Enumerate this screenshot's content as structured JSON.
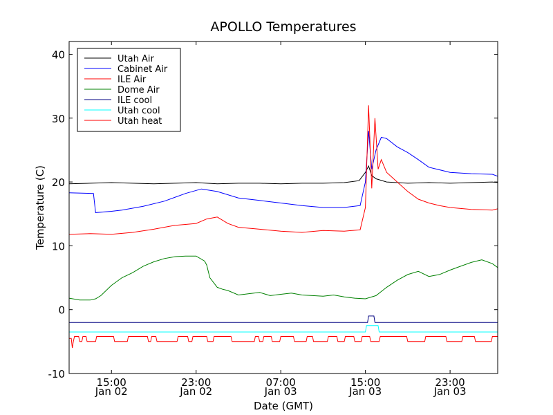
{
  "chart_data": {
    "type": "line",
    "title": "APOLLO Temperatures",
    "xlabel": "Date (GMT)",
    "ylabel": "Temperature (C)",
    "ylim": [
      -10,
      42
    ],
    "xlim": [
      0,
      40.5
    ],
    "x_unit": "hours since 11:00 Jan 02 GMT",
    "yticks": [
      {
        "value": -10,
        "label": "-10"
      },
      {
        "value": 0,
        "label": "0"
      },
      {
        "value": 10,
        "label": "10"
      },
      {
        "value": 20,
        "label": "20"
      },
      {
        "value": 30,
        "label": "30"
      },
      {
        "value": 40,
        "label": "40"
      }
    ],
    "xticks": [
      {
        "value": 4,
        "time": "15:00",
        "date": "Jan 02"
      },
      {
        "value": 12,
        "time": "23:00",
        "date": "Jan 02"
      },
      {
        "value": 20,
        "time": "07:00",
        "date": "Jan 03"
      },
      {
        "value": 28,
        "time": "15:00",
        "date": "Jan 03"
      },
      {
        "value": 36,
        "time": "23:00",
        "date": "Jan 03"
      }
    ],
    "legend_position": "top-left",
    "series": [
      {
        "name": "Utah Air",
        "color": "#000000",
        "x": [
          0,
          2,
          4,
          6,
          8,
          10,
          12,
          14,
          16,
          18,
          20,
          22,
          24,
          26,
          27.4,
          28,
          28.3,
          28.6,
          29,
          30,
          32,
          34,
          36,
          38,
          40,
          40.5
        ],
        "y": [
          19.7,
          19.8,
          19.9,
          19.8,
          19.7,
          19.8,
          19.9,
          19.7,
          19.8,
          19.8,
          19.7,
          19.8,
          19.8,
          19.9,
          20.2,
          21.5,
          22.5,
          21,
          20.5,
          20,
          19.8,
          19.9,
          19.8,
          19.9,
          20,
          19.9
        ]
      },
      {
        "name": "Cabinet Air",
        "color": "#0000ff",
        "x": [
          0,
          2.3,
          2.5,
          4,
          5,
          7,
          9,
          11,
          12.5,
          14,
          16,
          18,
          20,
          22,
          24,
          26,
          27.5,
          28,
          28.3,
          28.6,
          29,
          29.5,
          30,
          31,
          32,
          33,
          34,
          36,
          38,
          40,
          40.5
        ],
        "y": [
          18.3,
          18.2,
          15.2,
          15.4,
          15.6,
          16.2,
          17,
          18.2,
          18.9,
          18.5,
          17.5,
          17.1,
          16.7,
          16.3,
          16,
          16,
          16.3,
          20,
          28,
          22,
          25,
          27,
          26.8,
          25.5,
          24.6,
          23.5,
          22.3,
          21.5,
          21.3,
          21.2,
          20.9
        ]
      },
      {
        "name": "ILE Air",
        "color": "#ff0000",
        "x": [
          0,
          2,
          4,
          6,
          8,
          10,
          12,
          13,
          14,
          15,
          16,
          18,
          20,
          22,
          24,
          26,
          27.5,
          28,
          28.3,
          28.6,
          28.9,
          29.2,
          29.5,
          30,
          31,
          32,
          33,
          34,
          35,
          36,
          38,
          40,
          40.5
        ],
        "y": [
          11.8,
          11.9,
          11.8,
          12.1,
          12.6,
          13.2,
          13.5,
          14.2,
          14.5,
          13.5,
          12.9,
          12.6,
          12.3,
          12.1,
          12.4,
          12.3,
          12.5,
          16,
          32,
          19,
          30,
          22,
          23.5,
          21.5,
          20,
          18.5,
          17.3,
          16.7,
          16.3,
          16,
          15.7,
          15.6,
          15.8
        ]
      },
      {
        "name": "Dome Air",
        "color": "#008000",
        "x": [
          0,
          1,
          2,
          2.5,
          3,
          4,
          5,
          6,
          7,
          8,
          9,
          10,
          11,
          12,
          12.8,
          13,
          13.3,
          14,
          14.5,
          15,
          16,
          17,
          18,
          19,
          20,
          21,
          22,
          23,
          24,
          25,
          26,
          27,
          28,
          29,
          30,
          31,
          32,
          33,
          34,
          35,
          36,
          37,
          38,
          39,
          40,
          40.5
        ],
        "y": [
          1.8,
          1.5,
          1.5,
          1.7,
          2.2,
          3.8,
          5,
          5.8,
          6.8,
          7.5,
          8,
          8.3,
          8.4,
          8.4,
          7.6,
          7,
          5,
          3.5,
          3.2,
          3,
          2.3,
          2.5,
          2.7,
          2.2,
          2.4,
          2.6,
          2.3,
          2.2,
          2.1,
          2.3,
          2,
          1.8,
          1.7,
          2.2,
          3.5,
          4.6,
          5.5,
          6,
          5.2,
          5.5,
          6.2,
          6.8,
          7.4,
          7.8,
          7.2,
          6.6
        ]
      },
      {
        "name": "ILE cool",
        "color": "#000080",
        "x": [
          0,
          28.2,
          28.3,
          28.8,
          28.9,
          40.5
        ],
        "y": [
          -2,
          -2,
          -1,
          -1,
          -2,
          -2
        ]
      },
      {
        "name": "Utah cool",
        "color": "#00ffff",
        "x": [
          0,
          28,
          28.1,
          29.2,
          29.3,
          40.5
        ],
        "y": [
          -3.5,
          -3.5,
          -2.5,
          -2.5,
          -3.5,
          -3.5
        ]
      },
      {
        "name": "Utah heat",
        "color": "#ff0000",
        "x": [
          0,
          0.2,
          0.3,
          0.4,
          0.5,
          0.9,
          1,
          1.2,
          1.3,
          1.6,
          1.7,
          2.5,
          2.6,
          4.2,
          4.3,
          5.5,
          5.6,
          7.4,
          7.5,
          7.7,
          7.8,
          8.2,
          8.3,
          10.2,
          10.3,
          11.2,
          11.3,
          11.6,
          11.7,
          13,
          13.1,
          13.6,
          13.7,
          15.3,
          15.4,
          17.5,
          17.6,
          17.9,
          18,
          18.3,
          18.4,
          19.1,
          19.2,
          19.9,
          20,
          21.2,
          21.3,
          22.4,
          22.5,
          23,
          23.1,
          24.4,
          24.5,
          25.3,
          25.4,
          26,
          26.1,
          26.9,
          27,
          27.6,
          27.7,
          28.4,
          28.5,
          29.3,
          29.4,
          31.9,
          32,
          33.6,
          33.7,
          35.6,
          35.7,
          37.1,
          37.2,
          38.3,
          38.4,
          39.9,
          40,
          40.5
        ],
        "y": [
          -4.5,
          -4.5,
          -6,
          -5,
          -4.2,
          -4.2,
          -5,
          -5,
          -4.2,
          -4.2,
          -5,
          -5,
          -4.2,
          -4.2,
          -5,
          -5,
          -4.2,
          -4.2,
          -5,
          -5,
          -4.2,
          -4.2,
          -5,
          -5,
          -4.2,
          -4.2,
          -5,
          -5,
          -4.2,
          -4.2,
          -5,
          -5,
          -4.2,
          -4.2,
          -5,
          -5,
          -4.2,
          -4.2,
          -5,
          -5,
          -4.2,
          -4.2,
          -5,
          -5,
          -4.2,
          -4.2,
          -5,
          -5,
          -4.2,
          -4.2,
          -5,
          -5,
          -4.2,
          -4.2,
          -5,
          -5,
          -4.2,
          -4.2,
          -5,
          -5,
          -4.2,
          -4.2,
          -5,
          -5,
          -4.2,
          -4.2,
          -5,
          -5,
          -4.2,
          -4.2,
          -5,
          -5,
          -4.2,
          -4.2,
          -5,
          -5,
          -4.2,
          -4.2
        ]
      }
    ]
  }
}
